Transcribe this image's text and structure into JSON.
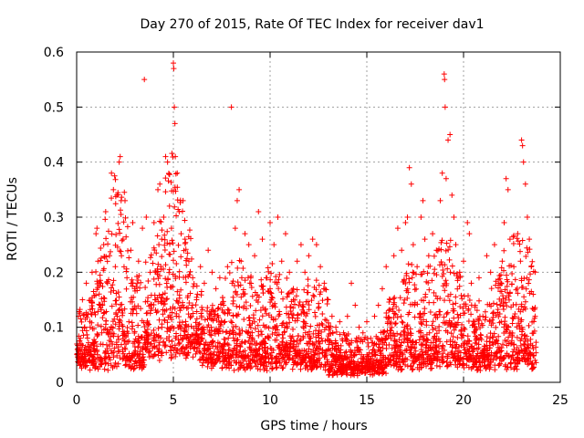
{
  "chart_data": {
    "type": "scatter",
    "title": "Day 270 of 2015, Rate Of TEC Index for receiver dav1",
    "xlabel": "GPS time / hours",
    "ylabel": "ROTI / TECUs",
    "xlim": [
      0,
      25
    ],
    "ylim": [
      0,
      0.6
    ],
    "xticks": [
      0,
      5,
      10,
      15,
      20,
      25
    ],
    "yticks": [
      0,
      0.1,
      0.2,
      0.3,
      0.4,
      0.5,
      0.6
    ],
    "xtick_labels": [
      "0",
      "5",
      "10",
      "15",
      "20",
      "25"
    ],
    "ytick_labels": [
      "0",
      "0.1",
      "0.2",
      "0.3",
      "0.4",
      "0.5",
      "0.6"
    ],
    "grid": true,
    "marker": "+",
    "color": "#ff0000",
    "series": [
      {
        "name": "dav1",
        "points": [
          [
            0.05,
            0.05
          ],
          [
            0.1,
            0.12
          ],
          [
            0.2,
            0.08
          ],
          [
            0.3,
            0.15
          ],
          [
            0.4,
            0.06
          ],
          [
            0.5,
            0.18
          ],
          [
            0.6,
            0.04
          ],
          [
            0.7,
            0.1
          ],
          [
            0.8,
            0.2
          ],
          [
            0.9,
            0.07
          ],
          [
            1.0,
            0.27
          ],
          [
            1.05,
            0.28
          ],
          [
            1.1,
            0.22
          ],
          [
            1.2,
            0.14
          ],
          [
            1.3,
            0.09
          ],
          [
            1.4,
            0.25
          ],
          [
            1.5,
            0.31
          ],
          [
            1.6,
            0.18
          ],
          [
            1.7,
            0.23
          ],
          [
            1.8,
            0.38
          ],
          [
            1.9,
            0.35
          ],
          [
            2.0,
            0.21
          ],
          [
            2.1,
            0.12
          ],
          [
            2.2,
            0.4
          ],
          [
            2.25,
            0.41
          ],
          [
            2.3,
            0.33
          ],
          [
            2.4,
            0.26
          ],
          [
            2.5,
            0.33
          ],
          [
            2.6,
            0.19
          ],
          [
            2.7,
            0.11
          ],
          [
            2.8,
            0.24
          ],
          [
            2.9,
            0.29
          ],
          [
            3.0,
            0.17
          ],
          [
            3.2,
            0.22
          ],
          [
            3.4,
            0.28
          ],
          [
            3.5,
            0.55
          ],
          [
            3.6,
            0.3
          ],
          [
            3.8,
            0.2
          ],
          [
            4.0,
            0.29
          ],
          [
            4.1,
            0.15
          ],
          [
            4.2,
            0.35
          ],
          [
            4.3,
            0.36
          ],
          [
            4.4,
            0.26
          ],
          [
            4.5,
            0.3
          ],
          [
            4.6,
            0.41
          ],
          [
            4.7,
            0.4
          ],
          [
            4.8,
            0.32
          ],
          [
            4.9,
            0.28
          ],
          [
            5.0,
            0.58
          ],
          [
            5.02,
            0.57
          ],
          [
            5.05,
            0.5
          ],
          [
            5.08,
            0.47
          ],
          [
            5.1,
            0.41
          ],
          [
            5.2,
            0.38
          ],
          [
            5.3,
            0.31
          ],
          [
            5.4,
            0.27
          ],
          [
            5.5,
            0.33
          ],
          [
            5.6,
            0.26
          ],
          [
            5.8,
            0.22
          ],
          [
            6.0,
            0.19
          ],
          [
            6.2,
            0.15
          ],
          [
            6.4,
            0.21
          ],
          [
            6.6,
            0.18
          ],
          [
            6.8,
            0.24
          ],
          [
            7.0,
            0.2
          ],
          [
            7.2,
            0.17
          ],
          [
            7.4,
            0.19
          ],
          [
            7.6,
            0.14
          ],
          [
            7.8,
            0.21
          ],
          [
            8.0,
            0.5
          ],
          [
            8.2,
            0.28
          ],
          [
            8.3,
            0.33
          ],
          [
            8.4,
            0.35
          ],
          [
            8.5,
            0.22
          ],
          [
            8.7,
            0.27
          ],
          [
            8.9,
            0.25
          ],
          [
            9.0,
            0.19
          ],
          [
            9.2,
            0.23
          ],
          [
            9.4,
            0.31
          ],
          [
            9.6,
            0.26
          ],
          [
            9.8,
            0.19
          ],
          [
            10.0,
            0.29
          ],
          [
            10.2,
            0.25
          ],
          [
            10.4,
            0.3
          ],
          [
            10.6,
            0.22
          ],
          [
            10.8,
            0.27
          ],
          [
            11.0,
            0.2
          ],
          [
            11.2,
            0.17
          ],
          [
            11.4,
            0.22
          ],
          [
            11.6,
            0.25
          ],
          [
            11.8,
            0.2
          ],
          [
            12.0,
            0.23
          ],
          [
            12.2,
            0.26
          ],
          [
            12.4,
            0.25
          ],
          [
            12.6,
            0.21
          ],
          [
            12.8,
            0.18
          ],
          [
            13.0,
            0.15
          ],
          [
            13.2,
            0.12
          ],
          [
            13.4,
            0.1
          ],
          [
            13.6,
            0.11
          ],
          [
            13.8,
            0.09
          ],
          [
            14.0,
            0.12
          ],
          [
            14.2,
            0.18
          ],
          [
            14.4,
            0.14
          ],
          [
            14.6,
            0.1
          ],
          [
            14.8,
            0.09
          ],
          [
            15.0,
            0.11
          ],
          [
            15.2,
            0.08
          ],
          [
            15.4,
            0.12
          ],
          [
            15.6,
            0.14
          ],
          [
            15.8,
            0.17
          ],
          [
            16.0,
            0.21
          ],
          [
            16.2,
            0.15
          ],
          [
            16.4,
            0.23
          ],
          [
            16.6,
            0.28
          ],
          [
            16.8,
            0.24
          ],
          [
            17.0,
            0.29
          ],
          [
            17.1,
            0.3
          ],
          [
            17.2,
            0.39
          ],
          [
            17.3,
            0.36
          ],
          [
            17.4,
            0.25
          ],
          [
            17.6,
            0.21
          ],
          [
            17.8,
            0.3
          ],
          [
            17.9,
            0.33
          ],
          [
            18.0,
            0.26
          ],
          [
            18.2,
            0.23
          ],
          [
            18.4,
            0.27
          ],
          [
            18.6,
            0.24
          ],
          [
            18.8,
            0.33
          ],
          [
            18.9,
            0.38
          ],
          [
            19.0,
            0.56
          ],
          [
            19.02,
            0.55
          ],
          [
            19.05,
            0.5
          ],
          [
            19.1,
            0.37
          ],
          [
            19.2,
            0.44
          ],
          [
            19.3,
            0.45
          ],
          [
            19.4,
            0.34
          ],
          [
            19.5,
            0.3
          ],
          [
            19.6,
            0.25
          ],
          [
            19.8,
            0.2
          ],
          [
            20.0,
            0.22
          ],
          [
            20.2,
            0.29
          ],
          [
            20.3,
            0.27
          ],
          [
            20.4,
            0.18
          ],
          [
            20.6,
            0.14
          ],
          [
            20.8,
            0.19
          ],
          [
            21.0,
            0.12
          ],
          [
            21.2,
            0.23
          ],
          [
            21.4,
            0.2
          ],
          [
            21.6,
            0.25
          ],
          [
            21.8,
            0.18
          ],
          [
            22.0,
            0.22
          ],
          [
            22.1,
            0.29
          ],
          [
            22.2,
            0.37
          ],
          [
            22.3,
            0.35
          ],
          [
            22.4,
            0.26
          ],
          [
            22.6,
            0.21
          ],
          [
            22.8,
            0.27
          ],
          [
            23.0,
            0.44
          ],
          [
            23.05,
            0.43
          ],
          [
            23.1,
            0.4
          ],
          [
            23.2,
            0.36
          ],
          [
            23.3,
            0.3
          ],
          [
            23.4,
            0.26
          ],
          [
            23.5,
            0.21
          ],
          [
            23.6,
            0.16
          ],
          [
            23.7,
            0.12
          ]
        ]
      }
    ]
  }
}
